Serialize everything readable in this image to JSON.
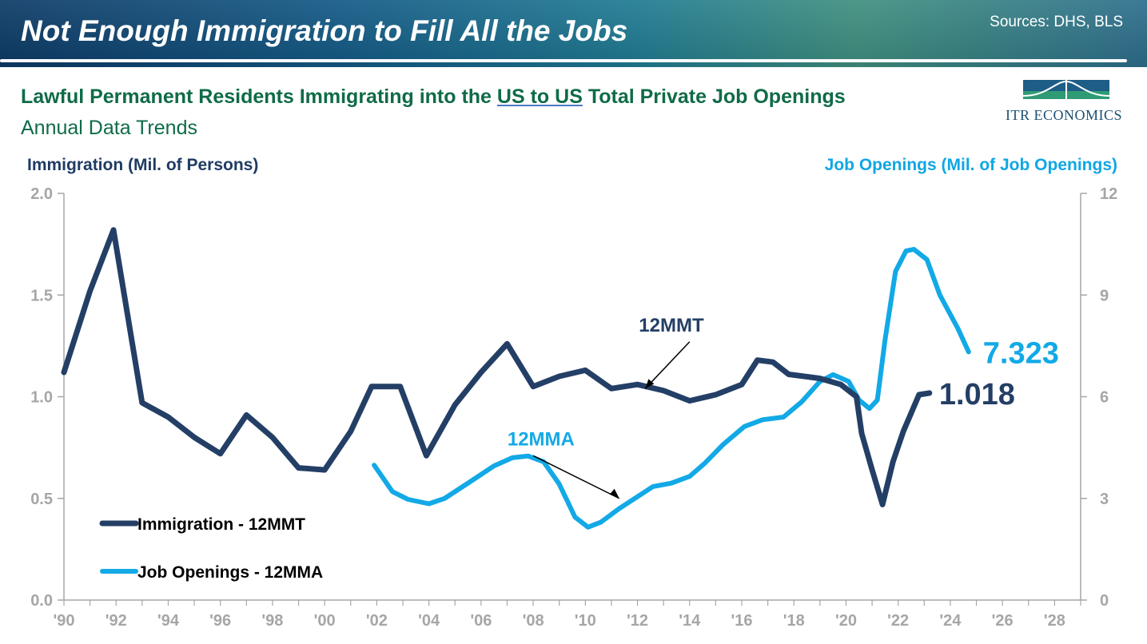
{
  "header": {
    "title": "Not Enough Immigration to Fill All the Jobs",
    "sources": "Sources: DHS, BLS"
  },
  "subtitle": {
    "part1": "Lawful Permanent Residents Immigrating into the ",
    "underlined": "US to US",
    "part2": " Total Private Job Openings",
    "line2": "Annual Data Trends"
  },
  "logo": {
    "text": "ITR ECONOMICS"
  },
  "colors": {
    "immigration": "#243f66",
    "openings": "#12a9e6",
    "axis_gray": "#a6a6a6",
    "title_green": "#0f6b47"
  },
  "chart_data": {
    "type": "line",
    "title": "Lawful Permanent Residents Immigrating into the US to US Total Private Job Openings",
    "ylabel_left": "Immigration (Mil. of Persons)",
    "ylabel_right": "Job Openings (Mil. of Job Openings)",
    "x_range": [
      1990,
      2029
    ],
    "ylim_left": [
      0,
      2.0
    ],
    "ylim_right": [
      0,
      12
    ],
    "y_ticks_left": [
      "0.0",
      "0.5",
      "1.0",
      "1.5",
      "2.0"
    ],
    "y_ticks_right": [
      "0",
      "3",
      "6",
      "9",
      "12"
    ],
    "x_ticks": [
      {
        "x": 1990,
        "label": "'90"
      },
      {
        "x": 1992,
        "label": "'92"
      },
      {
        "x": 1994,
        "label": "'94"
      },
      {
        "x": 1996,
        "label": "'96"
      },
      {
        "x": 1998,
        "label": "'98"
      },
      {
        "x": 2000,
        "label": "'00"
      },
      {
        "x": 2002,
        "label": "'02"
      },
      {
        "x": 2004,
        "label": "'04"
      },
      {
        "x": 2006,
        "label": "'06"
      },
      {
        "x": 2008,
        "label": "'08"
      },
      {
        "x": 2010,
        "label": "'10"
      },
      {
        "x": 2012,
        "label": "'12"
      },
      {
        "x": 2014,
        "label": "'14"
      },
      {
        "x": 2016,
        "label": "'16"
      },
      {
        "x": 2018,
        "label": "'18"
      },
      {
        "x": 2020,
        "label": "'20"
      },
      {
        "x": 2022,
        "label": "'22"
      },
      {
        "x": 2024,
        "label": "'24"
      },
      {
        "x": 2026,
        "label": "'26"
      },
      {
        "x": 2028,
        "label": "'28"
      }
    ],
    "series": [
      {
        "name": "Immigration - 12MMT",
        "axis": "left",
        "short_label": "12MMT",
        "last_value_label": "1.018",
        "points": [
          [
            1990.0,
            1.12
          ],
          [
            1991.0,
            1.52
          ],
          [
            1991.9,
            1.82
          ],
          [
            1993.0,
            0.97
          ],
          [
            1994.0,
            0.9
          ],
          [
            1995.0,
            0.8
          ],
          [
            1996.0,
            0.72
          ],
          [
            1997.0,
            0.91
          ],
          [
            1998.0,
            0.8
          ],
          [
            1999.0,
            0.65
          ],
          [
            2000.0,
            0.64
          ],
          [
            2001.0,
            0.83
          ],
          [
            2001.8,
            1.05
          ],
          [
            2002.9,
            1.05
          ],
          [
            2003.9,
            0.71
          ],
          [
            2005.0,
            0.96
          ],
          [
            2006.0,
            1.12
          ],
          [
            2007.0,
            1.26
          ],
          [
            2008.0,
            1.05
          ],
          [
            2009.0,
            1.1
          ],
          [
            2010.0,
            1.13
          ],
          [
            2011.0,
            1.04
          ],
          [
            2012.0,
            1.06
          ],
          [
            2013.0,
            1.03
          ],
          [
            2014.0,
            0.98
          ],
          [
            2015.0,
            1.01
          ],
          [
            2016.0,
            1.06
          ],
          [
            2016.6,
            1.18
          ],
          [
            2017.2,
            1.17
          ],
          [
            2017.8,
            1.11
          ],
          [
            2019.0,
            1.09
          ],
          [
            2019.8,
            1.06
          ],
          [
            2020.4,
            1.0
          ],
          [
            2020.6,
            0.82
          ],
          [
            2021.0,
            0.64
          ],
          [
            2021.4,
            0.47
          ],
          [
            2021.8,
            0.68
          ],
          [
            2022.2,
            0.83
          ],
          [
            2022.8,
            1.01
          ],
          [
            2023.2,
            1.018
          ]
        ]
      },
      {
        "name": "Job Openings - 12MMA",
        "axis": "right",
        "short_label": "12MMA",
        "last_value_label": "7.323",
        "points": [
          [
            2001.9,
            3.98
          ],
          [
            2002.6,
            3.2
          ],
          [
            2003.2,
            2.97
          ],
          [
            2004.0,
            2.84
          ],
          [
            2004.6,
            3.0
          ],
          [
            2005.5,
            3.45
          ],
          [
            2006.5,
            3.96
          ],
          [
            2007.2,
            4.2
          ],
          [
            2007.8,
            4.25
          ],
          [
            2008.4,
            4.08
          ],
          [
            2009.0,
            3.42
          ],
          [
            2009.6,
            2.45
          ],
          [
            2010.1,
            2.15
          ],
          [
            2010.6,
            2.3
          ],
          [
            2011.3,
            2.7
          ],
          [
            2012.0,
            3.05
          ],
          [
            2012.6,
            3.35
          ],
          [
            2013.3,
            3.45
          ],
          [
            2014.0,
            3.65
          ],
          [
            2014.6,
            4.05
          ],
          [
            2015.3,
            4.6
          ],
          [
            2016.1,
            5.12
          ],
          [
            2016.8,
            5.32
          ],
          [
            2017.6,
            5.4
          ],
          [
            2018.3,
            5.85
          ],
          [
            2019.0,
            6.45
          ],
          [
            2019.5,
            6.65
          ],
          [
            2020.1,
            6.45
          ],
          [
            2020.5,
            5.9
          ],
          [
            2020.9,
            5.65
          ],
          [
            2021.2,
            5.9
          ],
          [
            2021.5,
            7.7
          ],
          [
            2021.9,
            9.7
          ],
          [
            2022.3,
            10.3
          ],
          [
            2022.6,
            10.35
          ],
          [
            2023.1,
            10.05
          ],
          [
            2023.6,
            9.0
          ],
          [
            2024.3,
            8.0
          ],
          [
            2024.7,
            7.323
          ]
        ]
      }
    ],
    "annotations": [
      {
        "text": "12MMT",
        "series": "Immigration - 12MMT"
      },
      {
        "text": "12MMA",
        "series": "Job Openings - 12MMA"
      }
    ],
    "legend": {
      "position": "bottom-left",
      "entries": [
        "Immigration - 12MMT",
        "Job Openings - 12MMA"
      ]
    }
  }
}
